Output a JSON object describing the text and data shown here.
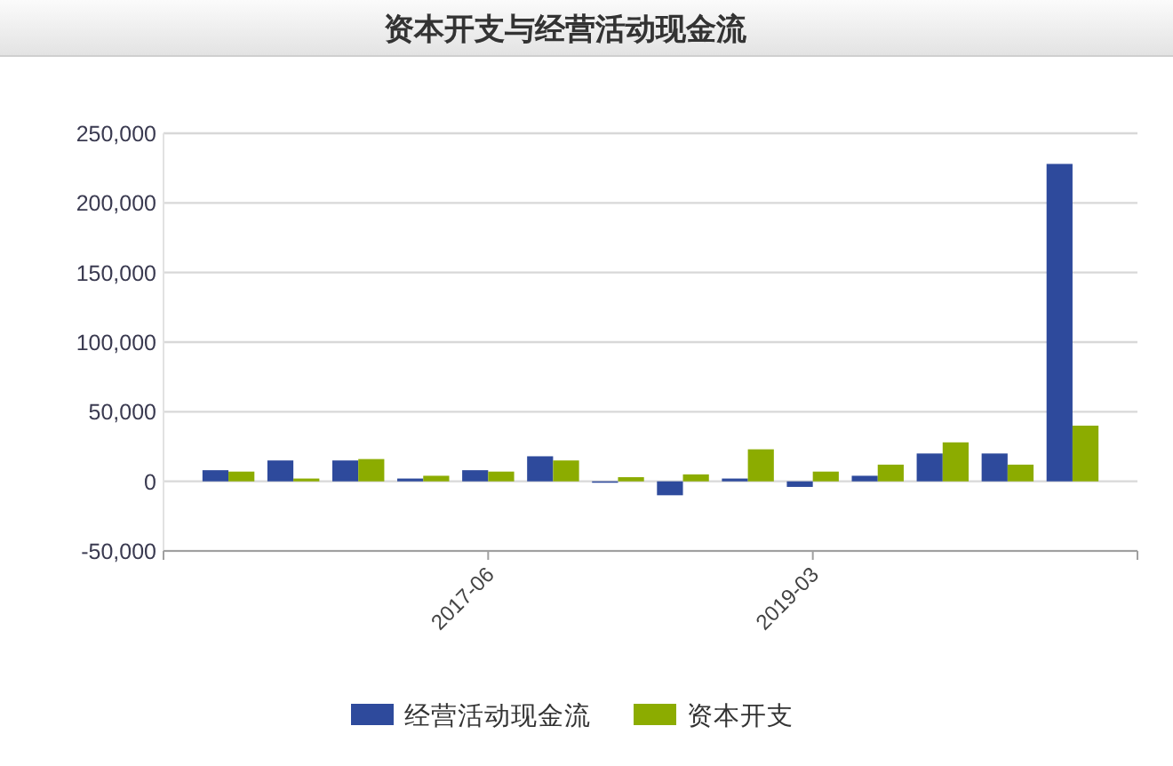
{
  "chart_data": {
    "type": "bar",
    "title": "资本开支与经营活动现金流",
    "categories": [
      null,
      null,
      null,
      null,
      "2017-06",
      null,
      null,
      null,
      null,
      "2019-03",
      null,
      null,
      null,
      null
    ],
    "series": [
      {
        "name": "经营活动现金流",
        "color": "#2e4a9c",
        "values": [
          8000,
          15000,
          15000,
          2000,
          8000,
          18000,
          -1000,
          -10000,
          2000,
          -4000,
          4000,
          20000,
          20000,
          228000
        ]
      },
      {
        "name": "资本开支",
        "color": "#8cac00",
        "values": [
          7000,
          2000,
          16000,
          4000,
          7000,
          15000,
          3000,
          5000,
          23000,
          7000,
          12000,
          28000,
          12000,
          40000
        ]
      }
    ],
    "ylim": [
      -50000,
      250000
    ],
    "yticks": [
      {
        "value": -50000,
        "label": "-50,000"
      },
      0,
      {
        "value": 50000,
        "label": "50,000"
      },
      {
        "value": 100000,
        "label": "100,000"
      },
      {
        "value": 150000,
        "label": "150,000"
      },
      {
        "value": 200000,
        "label": "200,000"
      },
      {
        "value": 250000,
        "label": "250,000"
      }
    ],
    "grid": "y",
    "legend": "bottom"
  }
}
